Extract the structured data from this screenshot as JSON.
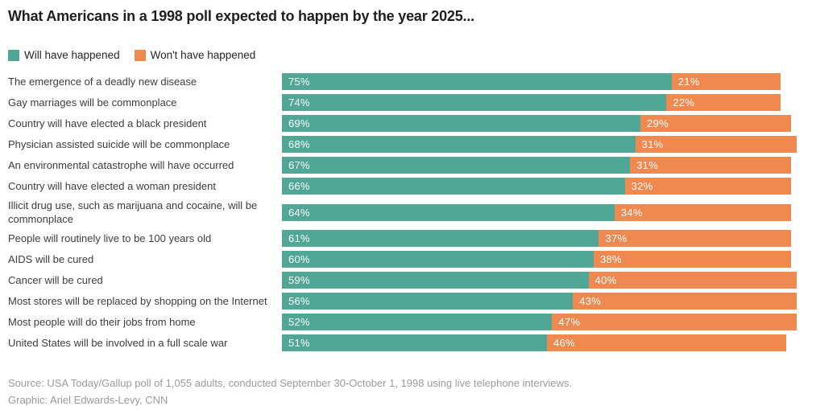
{
  "title": "What Americans in a 1998 poll expected to happen by the year 2025...",
  "legend": {
    "items": [
      {
        "label": "Will have happened",
        "color": "#51a795"
      },
      {
        "label": "Won't have happened",
        "color": "#f0894f"
      }
    ]
  },
  "chart_data": {
    "type": "bar",
    "orientation": "horizontal",
    "stacked": true,
    "unit": "%",
    "xlim": [
      0,
      100
    ],
    "grid": false,
    "legend_position": "top-left",
    "value_labels": "inside left of each segment, white text",
    "categories": [
      "The emergence of a deadly new disease",
      "Gay marriages will be commonplace",
      "Country will have elected a black president",
      "Physician assisted suicide will be commonplace",
      "An environmental catastrophe will have occurred",
      "Country will have elected a woman president",
      "Illicit drug use, such as marijuana and cocaine, will be commonplace",
      "People will routinely live to be 100 years old",
      "AIDS will be cured",
      "Cancer will be cured",
      "Most stores will be replaced by shopping on the Internet",
      "Most people will do their jobs from home",
      "United States will be involved in a full scale war"
    ],
    "series": [
      {
        "name": "Will have happened",
        "color": "#51a795",
        "values": [
          75,
          74,
          69,
          68,
          67,
          66,
          64,
          61,
          60,
          59,
          56,
          52,
          51
        ]
      },
      {
        "name": "Won't have happened",
        "color": "#f0894f",
        "values": [
          21,
          22,
          29,
          31,
          31,
          32,
          34,
          37,
          38,
          40,
          43,
          47,
          46
        ]
      }
    ]
  },
  "footer": {
    "source": "Source: USA Today/Gallup poll of 1,055 adults, conducted September 30-October 1, 1998 using live telephone interviews.",
    "credit": "Graphic: Ariel Edwards-Levy, CNN"
  }
}
